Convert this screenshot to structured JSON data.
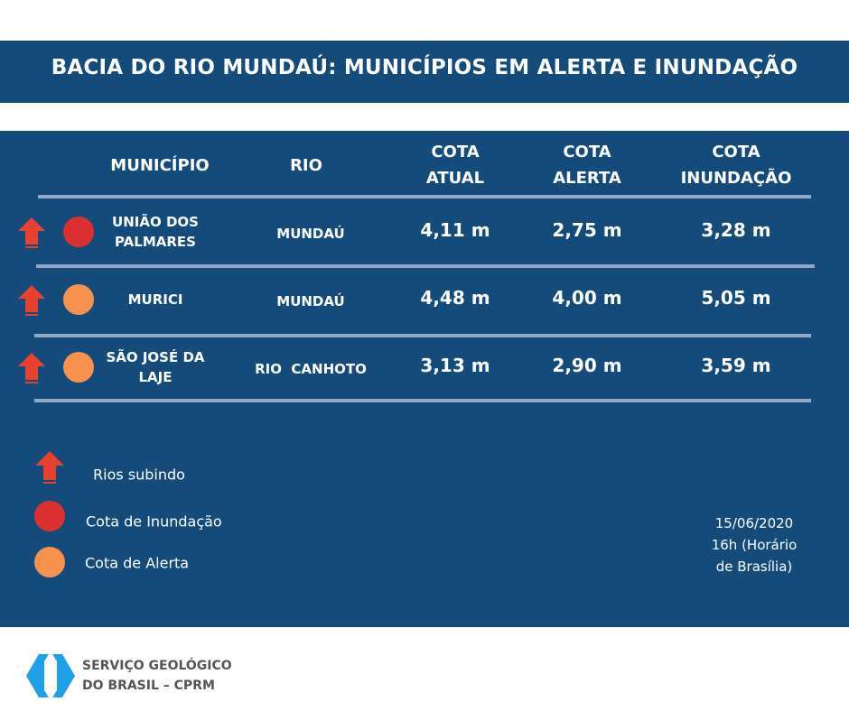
{
  "title": "BACIA DO RIO MUNDAÚ: MUNICÍPIOS EM ALERTA E INUNDAÇÃO",
  "headers": {
    "municipio": "MUNICÍPIO",
    "rio": "RIO",
    "cota_atual": "COTA ATUAL",
    "cota_alerta": "COTA ALERTA",
    "cota_inundacao": "COTA INUNDAÇÃO"
  },
  "rows": [
    {
      "municipio": "UNIÃO DOS PALMARES",
      "rio": "MUNDAÚ",
      "cota_atual": "4,11 m",
      "cota_alerta": "2,75 m",
      "cota_inundacao": "3,28 m",
      "status": "inundacao",
      "trend": "rising"
    },
    {
      "municipio": "MURICI",
      "rio": "MUNDAÚ",
      "cota_atual": "4,48 m",
      "cota_alerta": "4,00 m",
      "cota_inundacao": "5,05 m",
      "status": "alerta",
      "trend": "rising"
    },
    {
      "municipio": "SÃO JOSÉ DA LAJE",
      "rio": "RIO  CANHOTO",
      "cota_atual": "3,13 m",
      "cota_alerta": "2,90 m",
      "cota_inundacao": "3,59 m",
      "status": "alerta",
      "trend": "rising"
    }
  ],
  "legend": {
    "rising": "Rios subindo",
    "inundacao": "Cota de Inundação",
    "alerta": "Cota de Alerta"
  },
  "date": {
    "line1": "15/06/2020",
    "line2": "16h (Horário",
    "line3": "de Brasília)"
  },
  "logo": {
    "line1": "SERVIÇO GEOLÓGICO",
    "line2": "DO BRASIL – CPRM"
  },
  "colors": {
    "navy": "#154b7b",
    "inundacao": "#dc3030",
    "alerta": "#f7914f",
    "arrow": "#e8412f"
  }
}
